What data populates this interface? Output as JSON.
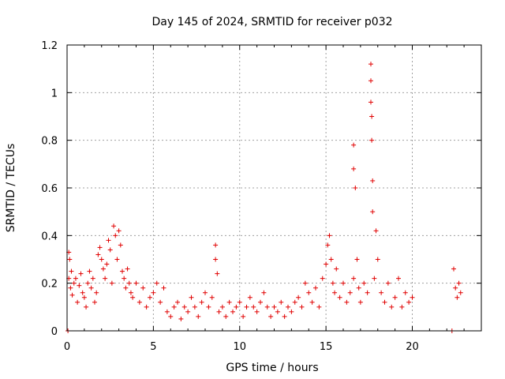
{
  "chart_data": {
    "type": "scatter",
    "title": "Day 145 of 2024, SRMTID for receiver p032",
    "xlabel": "GPS time / hours",
    "ylabel": "SRMTID / TECUs",
    "xlim": [
      0,
      24
    ],
    "ylim": [
      0,
      1.2
    ],
    "xticks": [
      0,
      5,
      10,
      15,
      20
    ],
    "yticks": [
      0,
      0.2,
      0.4,
      0.6,
      0.8,
      1.0,
      1.2
    ],
    "xtick_labels": [
      "0",
      "5",
      "10",
      "15",
      "20"
    ],
    "ytick_labels": [
      "0",
      "0.2",
      "0.4",
      "0.6",
      "0.8",
      "1",
      "1.2"
    ],
    "grid": true,
    "marker": "+",
    "color": "#e00000",
    "series": [
      {
        "name": "SRMTID",
        "points": [
          [
            0.05,
            0.0
          ],
          [
            0.1,
            0.33
          ],
          [
            0.1,
            0.22
          ],
          [
            0.15,
            0.3
          ],
          [
            0.2,
            0.18
          ],
          [
            0.25,
            0.25
          ],
          [
            0.3,
            0.15
          ],
          [
            0.4,
            0.2
          ],
          [
            0.5,
            0.22
          ],
          [
            0.6,
            0.12
          ],
          [
            0.7,
            0.19
          ],
          [
            0.8,
            0.24
          ],
          [
            0.9,
            0.16
          ],
          [
            1.0,
            0.14
          ],
          [
            1.1,
            0.1
          ],
          [
            1.2,
            0.2
          ],
          [
            1.3,
            0.25
          ],
          [
            1.4,
            0.18
          ],
          [
            1.5,
            0.22
          ],
          [
            1.6,
            0.12
          ],
          [
            1.7,
            0.16
          ],
          [
            1.8,
            0.32
          ],
          [
            1.9,
            0.35
          ],
          [
            2.0,
            0.3
          ],
          [
            2.1,
            0.26
          ],
          [
            2.2,
            0.22
          ],
          [
            2.3,
            0.28
          ],
          [
            2.4,
            0.38
          ],
          [
            2.5,
            0.34
          ],
          [
            2.6,
            0.2
          ],
          [
            2.7,
            0.44
          ],
          [
            2.8,
            0.4
          ],
          [
            2.9,
            0.3
          ],
          [
            3.0,
            0.42
          ],
          [
            3.1,
            0.36
          ],
          [
            3.2,
            0.25
          ],
          [
            3.3,
            0.22
          ],
          [
            3.4,
            0.18
          ],
          [
            3.5,
            0.26
          ],
          [
            3.6,
            0.2
          ],
          [
            3.7,
            0.16
          ],
          [
            3.8,
            0.14
          ],
          [
            4.0,
            0.2
          ],
          [
            4.2,
            0.12
          ],
          [
            4.4,
            0.18
          ],
          [
            4.6,
            0.1
          ],
          [
            4.8,
            0.14
          ],
          [
            5.0,
            0.16
          ],
          [
            5.2,
            0.2
          ],
          [
            5.4,
            0.12
          ],
          [
            5.6,
            0.18
          ],
          [
            5.8,
            0.08
          ],
          [
            6.0,
            0.06
          ],
          [
            6.2,
            0.1
          ],
          [
            6.4,
            0.12
          ],
          [
            6.6,
            0.05
          ],
          [
            6.8,
            0.1
          ],
          [
            7.0,
            0.08
          ],
          [
            7.2,
            0.14
          ],
          [
            7.4,
            0.1
          ],
          [
            7.6,
            0.06
          ],
          [
            7.8,
            0.12
          ],
          [
            8.0,
            0.16
          ],
          [
            8.2,
            0.1
          ],
          [
            8.4,
            0.14
          ],
          [
            8.6,
            0.36
          ],
          [
            8.6,
            0.3
          ],
          [
            8.7,
            0.24
          ],
          [
            8.8,
            0.08
          ],
          [
            9.0,
            0.1
          ],
          [
            9.2,
            0.06
          ],
          [
            9.4,
            0.12
          ],
          [
            9.6,
            0.08
          ],
          [
            9.8,
            0.1
          ],
          [
            10.0,
            0.12
          ],
          [
            10.2,
            0.06
          ],
          [
            10.4,
            0.1
          ],
          [
            10.6,
            0.14
          ],
          [
            10.8,
            0.1
          ],
          [
            11.0,
            0.08
          ],
          [
            11.2,
            0.12
          ],
          [
            11.4,
            0.16
          ],
          [
            11.6,
            0.1
          ],
          [
            11.8,
            0.06
          ],
          [
            12.0,
            0.1
          ],
          [
            12.2,
            0.08
          ],
          [
            12.4,
            0.12
          ],
          [
            12.6,
            0.06
          ],
          [
            12.8,
            0.1
          ],
          [
            13.0,
            0.08
          ],
          [
            13.2,
            0.12
          ],
          [
            13.4,
            0.14
          ],
          [
            13.6,
            0.1
          ],
          [
            13.8,
            0.2
          ],
          [
            14.0,
            0.16
          ],
          [
            14.2,
            0.12
          ],
          [
            14.4,
            0.18
          ],
          [
            14.6,
            0.1
          ],
          [
            14.8,
            0.22
          ],
          [
            15.0,
            0.28
          ],
          [
            15.1,
            0.36
          ],
          [
            15.2,
            0.4
          ],
          [
            15.3,
            0.3
          ],
          [
            15.4,
            0.2
          ],
          [
            15.5,
            0.16
          ],
          [
            15.6,
            0.26
          ],
          [
            15.8,
            0.14
          ],
          [
            16.0,
            0.2
          ],
          [
            16.2,
            0.12
          ],
          [
            16.4,
            0.16
          ],
          [
            16.6,
            0.22
          ],
          [
            16.6,
            0.78
          ],
          [
            16.6,
            0.68
          ],
          [
            16.7,
            0.6
          ],
          [
            16.8,
            0.3
          ],
          [
            16.9,
            0.18
          ],
          [
            17.0,
            0.12
          ],
          [
            17.2,
            0.2
          ],
          [
            17.4,
            0.16
          ],
          [
            17.6,
            1.12
          ],
          [
            17.6,
            1.05
          ],
          [
            17.6,
            0.96
          ],
          [
            17.65,
            0.9
          ],
          [
            17.65,
            0.8
          ],
          [
            17.7,
            0.63
          ],
          [
            17.7,
            0.5
          ],
          [
            17.8,
            0.22
          ],
          [
            17.9,
            0.42
          ],
          [
            18.0,
            0.3
          ],
          [
            18.2,
            0.16
          ],
          [
            18.4,
            0.12
          ],
          [
            18.6,
            0.2
          ],
          [
            18.8,
            0.1
          ],
          [
            19.0,
            0.14
          ],
          [
            19.2,
            0.22
          ],
          [
            19.4,
            0.1
          ],
          [
            19.6,
            0.16
          ],
          [
            19.8,
            0.12
          ],
          [
            20.0,
            0.14
          ],
          [
            22.3,
            0.0
          ],
          [
            22.4,
            0.26
          ],
          [
            22.5,
            0.18
          ],
          [
            22.6,
            0.14
          ],
          [
            22.7,
            0.2
          ],
          [
            22.8,
            0.16
          ]
        ]
      }
    ]
  }
}
